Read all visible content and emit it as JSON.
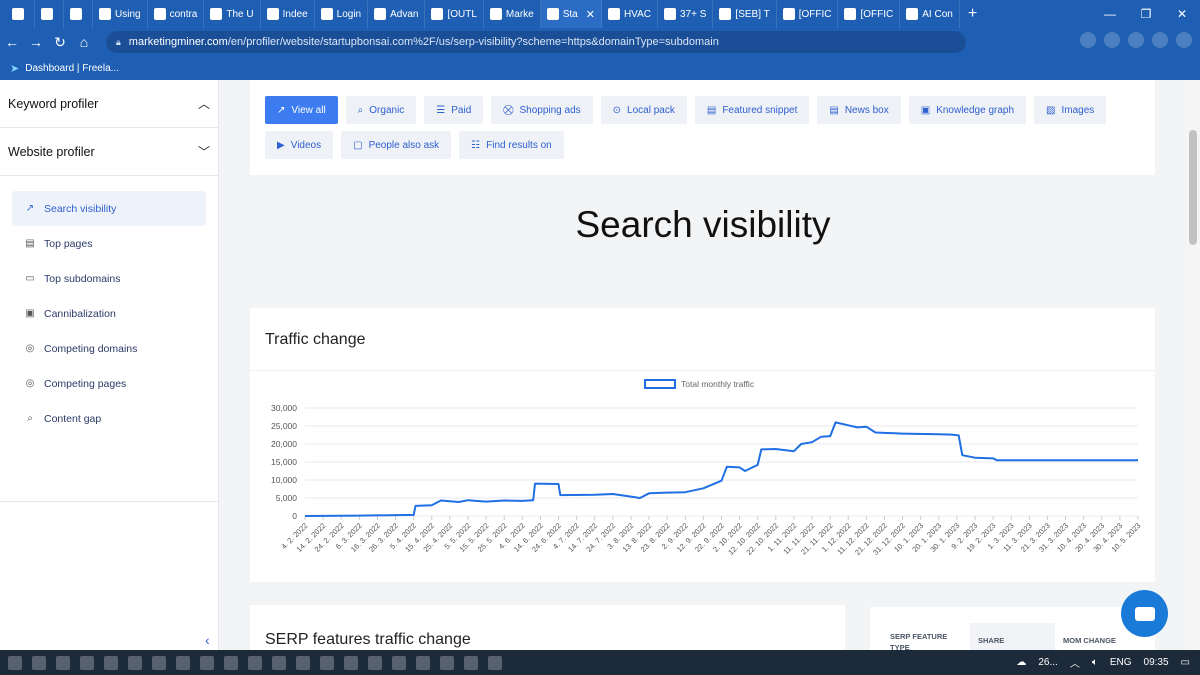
{
  "browser": {
    "tabs": [
      {
        "label": ""
      },
      {
        "label": ""
      },
      {
        "label": ""
      },
      {
        "label": "Using"
      },
      {
        "label": "contra"
      },
      {
        "label": "The U"
      },
      {
        "label": "Indee"
      },
      {
        "label": "Login"
      },
      {
        "label": "Advan"
      },
      {
        "label": "[OUTL"
      },
      {
        "label": "Marke"
      },
      {
        "label": "Sta",
        "active": true
      },
      {
        "label": "HVAC"
      },
      {
        "label": "37+ S"
      },
      {
        "label": "[SEB] T"
      },
      {
        "label": "[OFFIC"
      },
      {
        "label": "[OFFIC"
      },
      {
        "label": "AI Con"
      }
    ],
    "new_tab": "+",
    "close_tab": "✕",
    "url_host": "marketingminer.com",
    "url_path": "/en/profiler/website/startupbonsai.com%2F/us/serp-visibility?scheme=https&domainType=subdomain",
    "bookmark": "Dashboard | Freela..."
  },
  "sidebar": {
    "sections": [
      {
        "label": "Keyword profiler",
        "chevron": "︿"
      },
      {
        "label": "Website profiler",
        "chevron": "﹀"
      }
    ],
    "items": [
      {
        "label": "Search visibility",
        "icon": "trend-icon",
        "glyph": "↗",
        "active": true
      },
      {
        "label": "Top pages",
        "icon": "page-icon",
        "glyph": "▤"
      },
      {
        "label": "Top subdomains",
        "icon": "subdomain-icon",
        "glyph": "▭"
      },
      {
        "label": "Cannibalization",
        "icon": "cannibalization-icon",
        "glyph": "▣"
      },
      {
        "label": "Competing domains",
        "icon": "target-icon",
        "glyph": "◎"
      },
      {
        "label": "Competing pages",
        "icon": "target-icon",
        "glyph": "◎"
      },
      {
        "label": "Content gap",
        "icon": "content-gap-icon",
        "glyph": "⌕"
      }
    ],
    "collapse_glyph": "‹"
  },
  "filters": [
    {
      "label": "View all",
      "glyph": "↗",
      "active": true
    },
    {
      "label": "Organic",
      "glyph": "⌕"
    },
    {
      "label": "Paid",
      "glyph": "☰"
    },
    {
      "label": "Shopping ads",
      "glyph": "⛒"
    },
    {
      "label": "Local pack",
      "glyph": "⊙"
    },
    {
      "label": "Featured snippet",
      "glyph": "▤"
    },
    {
      "label": "News box",
      "glyph": "▤"
    },
    {
      "label": "Knowledge graph",
      "glyph": "▣"
    },
    {
      "label": "Images",
      "glyph": "▨"
    },
    {
      "label": "Videos",
      "glyph": "▶"
    },
    {
      "label": "People also ask",
      "glyph": "▢"
    },
    {
      "label": "Find results on",
      "glyph": "☷"
    }
  ],
  "page_title": "Search visibility",
  "traffic_card": {
    "title": "Traffic change"
  },
  "serp_card": {
    "title": "SERP features traffic change"
  },
  "serp_table": {
    "col1": "SERP FEATURE TYPE",
    "col2": "SHARE",
    "col3": "MOM CHANGE"
  },
  "taskbar": {
    "weather": "26...",
    "lang": "ENG",
    "time": "09:35"
  },
  "chart_data": {
    "type": "line",
    "series": [
      {
        "name": "Total monthly traffic",
        "color": "#1f6fe5"
      }
    ],
    "ylim": [
      0,
      30000
    ],
    "yticks": [
      "30,000",
      "25,000",
      "20,000",
      "15,000",
      "10,000",
      "5,000",
      "0"
    ],
    "xticks": [
      "4. 2. 2022",
      "14. 2. 2022",
      "24. 2. 2022",
      "6. 3. 2022",
      "16. 3. 2022",
      "26. 3. 2022",
      "5. 4. 2022",
      "15. 4. 2022",
      "25. 4. 2022",
      "5. 5. 2022",
      "15. 5. 2022",
      "25. 5. 2022",
      "4. 6. 2022",
      "14. 6. 2022",
      "24. 6. 2022",
      "4. 7. 2022",
      "14. 7. 2022",
      "24. 7. 2022",
      "3. 8. 2022",
      "13. 8. 2022",
      "23. 8. 2022",
      "2. 9. 2022",
      "12. 9. 2022",
      "22. 9. 2022",
      "2. 10. 2022",
      "12. 10. 2022",
      "22. 10. 2022",
      "1. 11. 2022",
      "11. 11. 2022",
      "21. 11. 2022",
      "1. 12. 2022",
      "11. 12. 2022",
      "21. 12. 2022",
      "31. 12. 2022",
      "10. 1. 2023",
      "20. 1. 2023",
      "30. 1. 2023",
      "9. 2. 2023",
      "19. 2. 2023",
      "1. 3. 2023",
      "11. 3. 2023",
      "21. 3. 2023",
      "31. 3. 2023",
      "10. 4. 2023",
      "20. 4. 2023",
      "30. 4. 2023",
      "10. 5. 2023"
    ],
    "points": [
      [
        "4. 2. 2022",
        0
      ],
      [
        "6. 3. 2022",
        100
      ],
      [
        "5. 4. 2022",
        300
      ],
      [
        "6. 4. 2022",
        2800
      ],
      [
        "15. 4. 2022",
        3000
      ],
      [
        "20. 4. 2022",
        4300
      ],
      [
        "30. 4. 2022",
        3900
      ],
      [
        "5. 5. 2022",
        4400
      ],
      [
        "15. 5. 2022",
        4000
      ],
      [
        "25. 5. 2022",
        4300
      ],
      [
        "4. 6. 2022",
        4200
      ],
      [
        "10. 6. 2022",
        4400
      ],
      [
        "11. 6. 2022",
        9000
      ],
      [
        "24. 6. 2022",
        8900
      ],
      [
        "25. 6. 2022",
        5800
      ],
      [
        "14. 7. 2022",
        5900
      ],
      [
        "24. 7. 2022",
        6100
      ],
      [
        "3. 8. 2022",
        5400
      ],
      [
        "8. 8. 2022",
        5000
      ],
      [
        "13. 8. 2022",
        6300
      ],
      [
        "23. 8. 2022",
        6500
      ],
      [
        "2. 9. 2022",
        6600
      ],
      [
        "12. 9. 2022",
        7700
      ],
      [
        "22. 9. 2022",
        9800
      ],
      [
        "25. 9. 2022",
        13700
      ],
      [
        "2. 10. 2022",
        13500
      ],
      [
        "5. 10. 2022",
        12500
      ],
      [
        "12. 10. 2022",
        14200
      ],
      [
        "14. 10. 2022",
        18500
      ],
      [
        "22. 10. 2022",
        18600
      ],
      [
        "1. 11. 2022",
        18000
      ],
      [
        "5. 11. 2022",
        20000
      ],
      [
        "11. 11. 2022",
        20500
      ],
      [
        "16. 11. 2022",
        22000
      ],
      [
        "21. 11. 2022",
        22200
      ],
      [
        "24. 11. 2022",
        26000
      ],
      [
        "1. 12. 2022",
        25200
      ],
      [
        "6. 12. 2022",
        24600
      ],
      [
        "11. 12. 2022",
        24800
      ],
      [
        "16. 12. 2022",
        23200
      ],
      [
        "31. 12. 2022",
        22900
      ],
      [
        "20. 1. 2023",
        22700
      ],
      [
        "27. 1. 2023",
        22600
      ],
      [
        "31. 1. 2023",
        22400
      ],
      [
        "2. 2. 2023",
        16900
      ],
      [
        "9. 2. 2023",
        16200
      ],
      [
        "19. 2. 2023",
        16000
      ],
      [
        "21. 2. 2023",
        15500
      ],
      [
        "10. 5. 2023",
        15500
      ]
    ]
  }
}
